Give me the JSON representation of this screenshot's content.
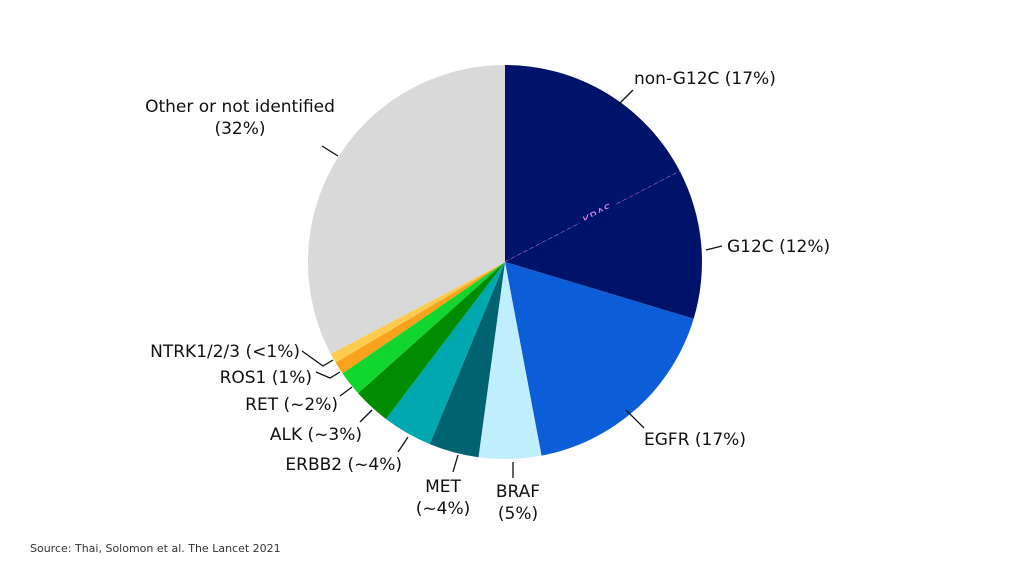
{
  "chart_data": {
    "type": "pie",
    "title": "",
    "slices": [
      {
        "label": "non-G12C (17%)",
        "value": 17,
        "color": "#00136b",
        "group": "KRAS"
      },
      {
        "label": "G12C (12%)",
        "value": 12,
        "color": "#00136b",
        "group": "KRAS"
      },
      {
        "label": "EGFR (17%)",
        "value": 17,
        "color": "#0b5ed7"
      },
      {
        "label": "BRAF (5%)",
        "value": 5,
        "color": "#bfeefc"
      },
      {
        "label": "MET (~4%)",
        "value": 4,
        "color": "#006470"
      },
      {
        "label": "ERBB2 (~4%)",
        "value": 4,
        "color": "#00a8b0"
      },
      {
        "label": "ALK (~3%)",
        "value": 3,
        "color": "#008c00"
      },
      {
        "label": "RET (~2%)",
        "value": 2,
        "color": "#11d62e"
      },
      {
        "label": "ROS1 (1%)",
        "value": 1,
        "color": "#f9a21b"
      },
      {
        "label": "NTRK1/2/3 (<1%)",
        "value": 0.8,
        "color": "#fdcc4f"
      },
      {
        "label": "Other or not identified (32%)",
        "value": 32,
        "color": "#d9d9d9"
      }
    ],
    "group_label": "KRAS",
    "group_label_color": "#e08ae0",
    "start": "top",
    "direction": "clockwise"
  },
  "source": "Source: Thai, Solomon et al. The Lancet 2021"
}
